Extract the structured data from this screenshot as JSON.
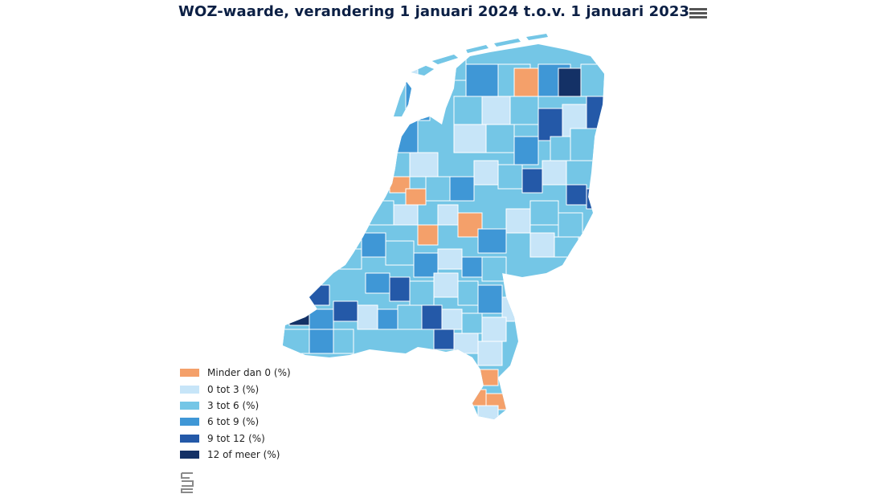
{
  "chart_title": "WOZ-waarde, verandering 1 januari 2024 t.o.v. 1 januari 2023",
  "legend": [
    {
      "label": "Minder dan 0 (%)",
      "color": "#f4a06a"
    },
    {
      "label": "0 tot 3 (%)",
      "color": "#c7e5f8"
    },
    {
      "label": "3 tot 6 (%)",
      "color": "#74c6e6"
    },
    {
      "label": "6 tot 9 (%)",
      "color": "#3f97d6"
    },
    {
      "label": "9 tot 12 (%)",
      "color": "#2459a8"
    },
    {
      "label": "12 of meer (%)",
      "color": "#143166"
    }
  ],
  "icons": {
    "menu": "hamburger-menu-icon",
    "logo": "cbs-logo"
  }
}
